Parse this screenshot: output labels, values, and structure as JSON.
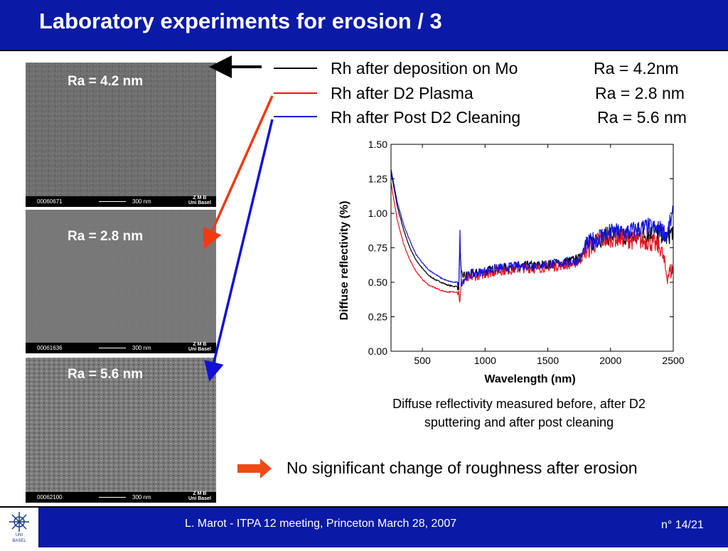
{
  "header": {
    "title": "Laboratory experiments for erosion / 3"
  },
  "sem_images": [
    {
      "ra": "Ra = 4.2 nm",
      "image_id": "00060671",
      "scale": "300 nm",
      "lab": "Z M B",
      "lab2": "Uni Basel"
    },
    {
      "ra": "Ra = 2.8 nm",
      "image_id": "00061636",
      "scale": "300 nm",
      "lab": "Z M B",
      "lab2": "Uni Basel"
    },
    {
      "ra": "Ra = 5.6 nm",
      "image_id": "00062100",
      "scale": "300 nm",
      "lab": "Z M B",
      "lab2": "Uni Basel"
    }
  ],
  "legend": [
    {
      "label": "Rh after deposition on Mo",
      "ra": "Ra = 4.2nm",
      "color": "#000000"
    },
    {
      "label": "Rh after D2 Plasma",
      "ra": "Ra = 2.8 nm",
      "color": "#e8141c"
    },
    {
      "label": "Rh after Post D2 Cleaning",
      "ra": "Ra = 5.6 nm",
      "color": "#1515e0"
    }
  ],
  "chart_data": {
    "type": "line",
    "xlabel": "Wavelength (nm)",
    "ylabel": "Diffuse reflectivity (%)",
    "xlim": [
      250,
      2500
    ],
    "ylim": [
      0,
      1.5
    ],
    "xticks": [
      "500",
      "1000",
      "1500",
      "2000",
      "2500"
    ],
    "yticks": [
      "0.00",
      "0.25",
      "0.50",
      "0.75",
      "1.00",
      "1.25",
      "1.50"
    ],
    "series": [
      {
        "name": "Rh after deposition on Mo",
        "color": "#000000",
        "x": [
          250,
          300,
          350,
          400,
          450,
          500,
          550,
          600,
          650,
          700,
          750,
          790,
          800,
          810,
          850,
          900,
          1000,
          1100,
          1200,
          1300,
          1400,
          1500,
          1600,
          1700,
          1750,
          1800,
          1900,
          2000,
          2100,
          2200,
          2300,
          2400,
          2450,
          2500
        ],
        "y": [
          1.3,
          1.05,
          0.88,
          0.75,
          0.66,
          0.6,
          0.55,
          0.52,
          0.5,
          0.48,
          0.47,
          0.47,
          0.75,
          0.55,
          0.55,
          0.56,
          0.58,
          0.6,
          0.61,
          0.62,
          0.62,
          0.63,
          0.64,
          0.66,
          0.67,
          0.75,
          0.82,
          0.84,
          0.84,
          0.83,
          0.85,
          0.86,
          0.82,
          0.88
        ]
      },
      {
        "name": "Rh after D2 Plasma",
        "color": "#e8141c",
        "x": [
          250,
          300,
          350,
          400,
          450,
          500,
          550,
          600,
          650,
          700,
          750,
          790,
          800,
          810,
          850,
          900,
          1000,
          1100,
          1200,
          1300,
          1400,
          1500,
          1600,
          1700,
          1750,
          1800,
          1900,
          2000,
          2100,
          2200,
          2300,
          2400,
          2450,
          2500
        ],
        "y": [
          1.22,
          0.95,
          0.78,
          0.66,
          0.58,
          0.52,
          0.48,
          0.46,
          0.44,
          0.43,
          0.43,
          0.43,
          0.35,
          0.5,
          0.52,
          0.54,
          0.56,
          0.58,
          0.59,
          0.6,
          0.6,
          0.61,
          0.62,
          0.63,
          0.65,
          0.72,
          0.8,
          0.82,
          0.82,
          0.8,
          0.8,
          0.75,
          0.55,
          0.6
        ]
      },
      {
        "name": "Rh after Post D2 Cleaning",
        "color": "#1515e0",
        "x": [
          250,
          300,
          350,
          400,
          450,
          500,
          550,
          600,
          650,
          700,
          750,
          790,
          800,
          810,
          850,
          900,
          1000,
          1100,
          1200,
          1300,
          1400,
          1500,
          1600,
          1700,
          1750,
          1800,
          1900,
          2000,
          2100,
          2200,
          2300,
          2400,
          2450,
          2500
        ],
        "y": [
          1.32,
          1.08,
          0.92,
          0.8,
          0.7,
          0.64,
          0.59,
          0.56,
          0.53,
          0.51,
          0.5,
          0.5,
          0.85,
          0.5,
          0.54,
          0.56,
          0.58,
          0.6,
          0.61,
          0.62,
          0.62,
          0.63,
          0.64,
          0.65,
          0.66,
          0.76,
          0.83,
          0.86,
          0.86,
          0.88,
          0.9,
          0.88,
          0.85,
          1.0
        ]
      }
    ]
  },
  "caption": {
    "line1": "Diffuse reflectivity measured before, after D2",
    "line2": "sputtering and after post cleaning"
  },
  "conclusion": "No significant change of roughness after erosion",
  "footer": {
    "text": "L. Marot - ITPA 12 meeting, Princeton March 28, 2007",
    "page": "n° 14/21",
    "logo_text_1": "UNI",
    "logo_text_2": "BASEL"
  }
}
